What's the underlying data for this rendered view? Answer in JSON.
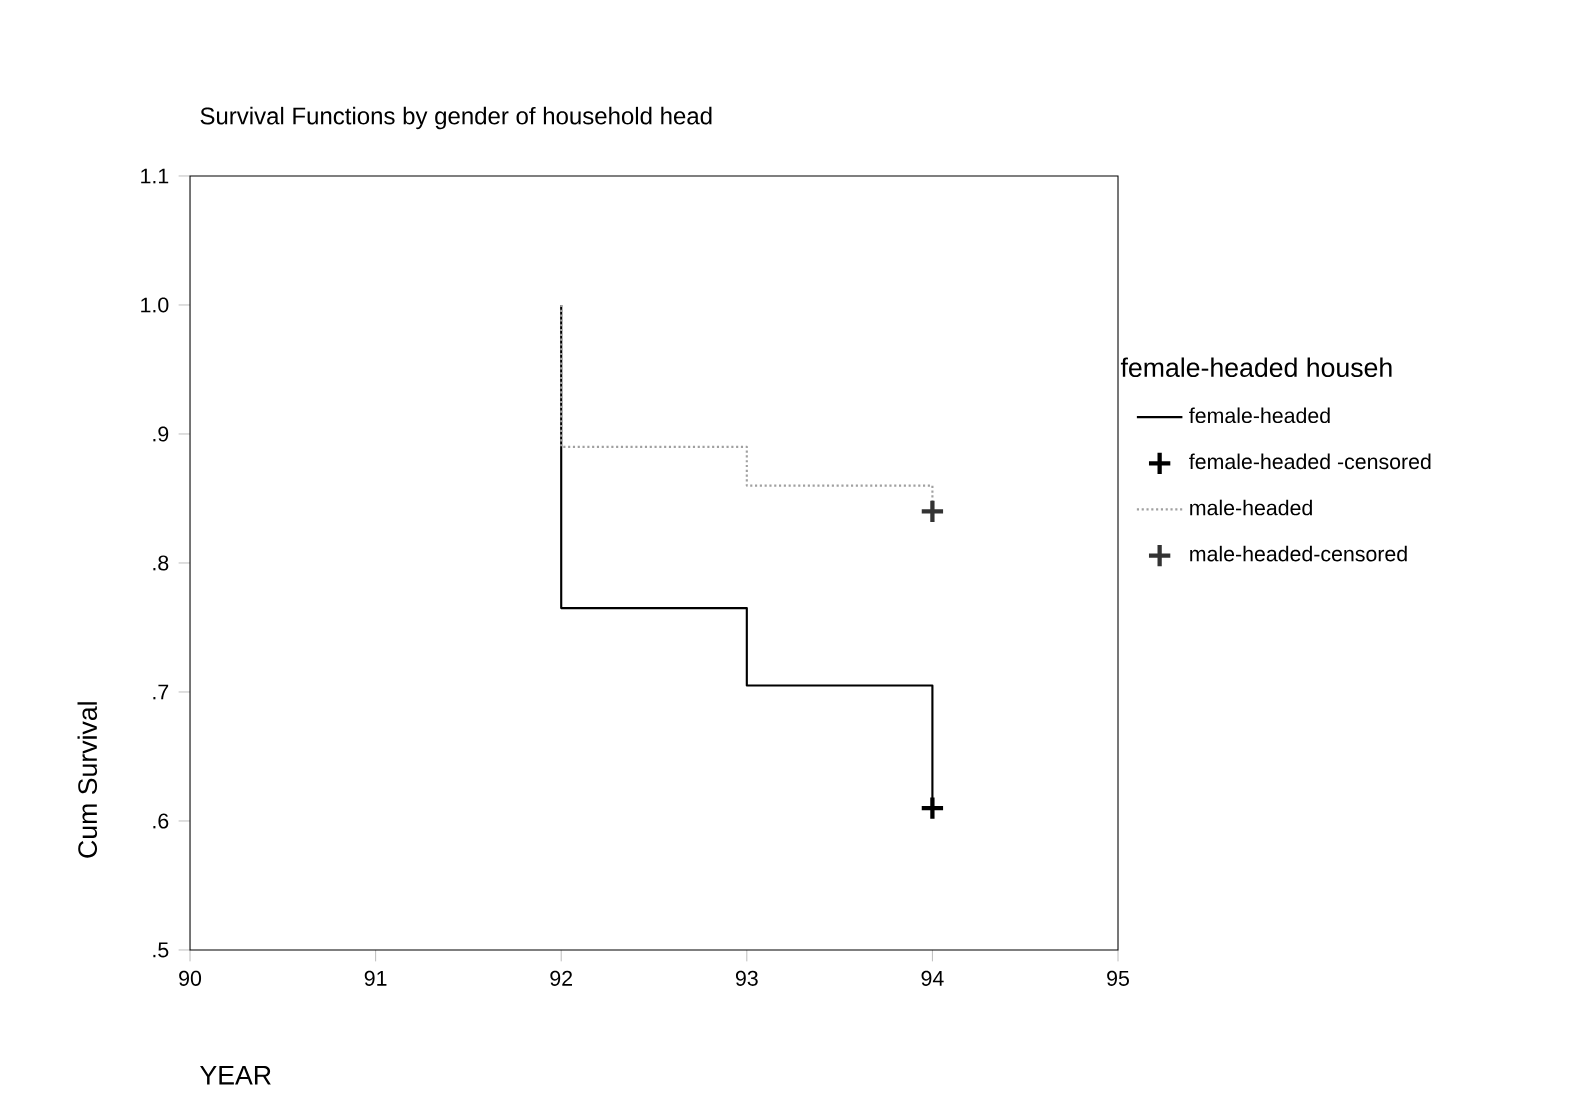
{
  "chart_data": {
    "type": "step",
    "title": "Survival Functions by gender of household head",
    "xlabel": "YEAR",
    "ylabel": "Cum Survival",
    "legend_title": "female-headed househ",
    "xlim": [
      90,
      95
    ],
    "xticks": [
      90,
      91,
      92,
      93,
      94,
      95
    ],
    "ylim": [
      0.5,
      1.1
    ],
    "yticks": [
      {
        "value": 0.5,
        "label": ".5"
      },
      {
        "value": 0.6,
        "label": ".6"
      },
      {
        "value": 0.7,
        "label": ".7"
      },
      {
        "value": 0.8,
        "label": ".8"
      },
      {
        "value": 0.9,
        "label": ".9"
      },
      {
        "value": 1.0,
        "label": "1.0"
      },
      {
        "value": 1.1,
        "label": "1.1"
      }
    ],
    "grid": false,
    "legend": "right",
    "series": [
      {
        "name": "female-headed",
        "color": "#000000",
        "line_style": "solid",
        "x": [
          92,
          92,
          93,
          94,
          94
        ],
        "values": [
          1.0,
          0.765,
          0.705,
          0.705,
          0.61
        ]
      },
      {
        "name": "female-headed -censored",
        "type": "scatter",
        "marker": "cross",
        "color": "#000000",
        "x": [
          94
        ],
        "values": [
          0.61
        ]
      },
      {
        "name": "male-headed",
        "color": "#a0a0a0",
        "line_style": "dotted",
        "x": [
          92,
          92,
          93,
          94,
          94
        ],
        "values": [
          1.0,
          0.89,
          0.86,
          0.86,
          0.84
        ]
      },
      {
        "name": "male-headed-censored",
        "type": "scatter",
        "marker": "cross",
        "color": "#333333",
        "x": [
          94
        ],
        "values": [
          0.84
        ]
      }
    ]
  }
}
